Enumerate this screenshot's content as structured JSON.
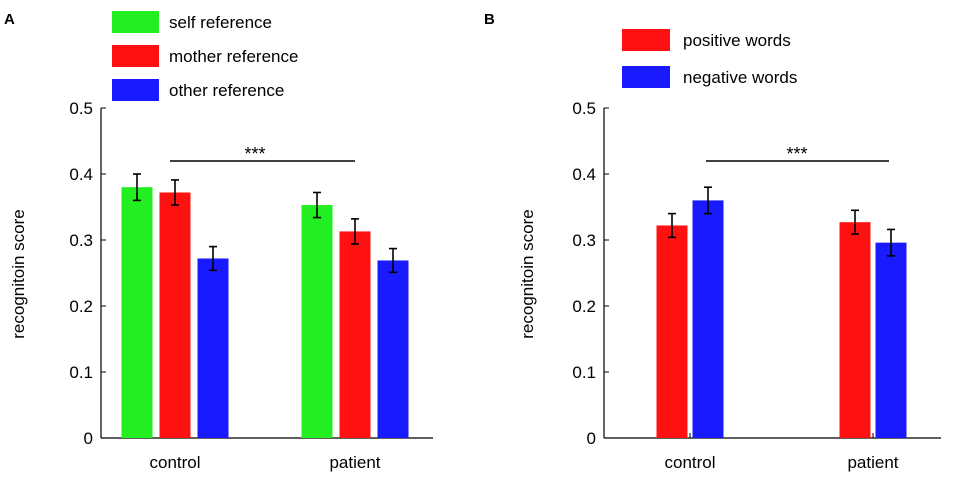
{
  "chart_data": [
    {
      "panel": "A",
      "type": "bar",
      "categories": [
        "control",
        "patient"
      ],
      "series": [
        {
          "name": "self reference",
          "color": "#22ee22",
          "values": [
            0.38,
            0.353
          ],
          "errors": [
            0.02,
            0.019
          ]
        },
        {
          "name": "mother reference",
          "color": "#ff1111",
          "values": [
            0.372,
            0.313
          ],
          "errors": [
            0.019,
            0.019
          ]
        },
        {
          "name": "other reference",
          "color": "#1a1aff",
          "values": [
            0.272,
            0.269
          ],
          "errors": [
            0.018,
            0.018
          ]
        }
      ],
      "ylabel": "recognitoin score",
      "xlabel": "",
      "ylim": [
        0,
        0.5
      ],
      "yticks": [
        "0",
        "0.1",
        "0.2",
        "0.3",
        "0.4",
        "0.5"
      ],
      "significance": {
        "label": "***",
        "y": 0.42
      }
    },
    {
      "panel": "B",
      "type": "bar",
      "categories": [
        "control",
        "patient"
      ],
      "series": [
        {
          "name": "positive words",
          "color": "#ff1111",
          "values": [
            0.322,
            0.327
          ],
          "errors": [
            0.018,
            0.018
          ]
        },
        {
          "name": "negative words",
          "color": "#1a1aff",
          "values": [
            0.36,
            0.296
          ],
          "errors": [
            0.02,
            0.02
          ]
        }
      ],
      "ylabel": "recognitoin score",
      "xlabel": "",
      "ylim": [
        0,
        0.5
      ],
      "yticks": [
        "0",
        "0.1",
        "0.2",
        "0.3",
        "0.4",
        "0.5"
      ],
      "significance": {
        "label": "***",
        "y": 0.42
      }
    }
  ]
}
